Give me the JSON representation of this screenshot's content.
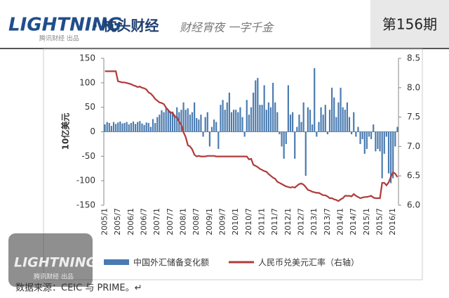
{
  "header": {
    "logo": "LIGHTNING",
    "logo_sub": "腾讯财经 出品",
    "brand": "· 枕头财经",
    "slogan": "财经宵夜 一字千金",
    "issue": "第156期"
  },
  "watermark": {
    "logo": "LIGHTNING",
    "logo_sub": "腾讯财经 出品"
  },
  "source": "数据来源：CEIC 与 PRIME。↵",
  "chart_data": {
    "type": "combo",
    "y_label": "10亿美元",
    "categories": [
      "2005/1",
      null,
      null,
      null,
      null,
      null,
      "2005/7",
      null,
      null,
      null,
      null,
      null,
      "2006/1",
      null,
      null,
      null,
      null,
      null,
      "2006/7",
      null,
      null,
      null,
      null,
      null,
      "2007/1",
      null,
      null,
      null,
      null,
      null,
      "2007/7",
      null,
      null,
      null,
      null,
      null,
      "2008/1",
      null,
      null,
      null,
      null,
      null,
      "2008/7",
      null,
      null,
      null,
      null,
      null,
      "2009/1",
      null,
      null,
      null,
      null,
      null,
      "2009/7",
      null,
      null,
      null,
      null,
      null,
      "2010/1",
      null,
      null,
      null,
      null,
      null,
      "2010/7",
      null,
      null,
      null,
      null,
      null,
      "2011/1",
      null,
      null,
      null,
      null,
      null,
      "2011/7",
      null,
      null,
      null,
      null,
      null,
      "2012/1",
      null,
      null,
      null,
      null,
      null,
      "2012/7",
      null,
      null,
      null,
      null,
      null,
      "2013/1",
      null,
      null,
      null,
      null,
      null,
      "2013/7",
      null,
      null,
      null,
      null,
      null,
      "2014/1",
      null,
      null,
      null,
      null,
      null,
      "2014/7",
      null,
      null,
      null,
      null,
      null,
      "2015/1",
      null,
      null,
      null,
      null,
      null,
      "2015/7",
      null,
      null,
      null,
      null,
      null,
      "2016/1",
      null,
      null
    ],
    "series": [
      {
        "name": "中国外汇储备变化额",
        "type": "bar",
        "color": "#4a7bb0",
        "values": [
          15,
          20,
          18,
          12,
          20,
          16,
          19,
          21,
          17,
          18,
          20,
          15,
          18,
          21,
          16,
          20,
          22,
          17,
          14,
          19,
          18,
          10,
          26,
          18,
          30,
          35,
          44,
          40,
          50,
          45,
          42,
          38,
          35,
          50,
          40,
          45,
          60,
          45,
          48,
          35,
          40,
          60,
          28,
          25,
          35,
          -10,
          30,
          40,
          -30,
          10,
          25,
          20,
          -35,
          55,
          65,
          45,
          60,
          80,
          40,
          45,
          45,
          40,
          50,
          30,
          -10,
          65,
          35,
          50,
          80,
          105,
          110,
          55,
          55,
          95,
          45,
          60,
          50,
          100,
          60,
          40,
          -5,
          -30,
          -55,
          -25,
          95,
          35,
          40,
          -55,
          10,
          35,
          20,
          60,
          -90,
          50,
          45,
          15,
          130,
          -10,
          20,
          50,
          35,
          55,
          -5,
          45,
          90,
          70,
          30,
          60,
          90,
          50,
          45,
          60,
          30,
          -5,
          40,
          -10,
          10,
          -25,
          -15,
          -45,
          -35,
          -10,
          -15,
          15,
          -40,
          -35,
          -40,
          -95,
          -45,
          -10,
          -85,
          -105,
          -95,
          -30,
          10
        ]
      },
      {
        "name": "人民币兑美元汇率（右轴）",
        "type": "line",
        "axis": "y2",
        "color": "#b03a3a",
        "values": [
          8.28,
          8.28,
          8.28,
          8.28,
          8.28,
          8.28,
          8.11,
          8.1,
          8.09,
          8.09,
          8.08,
          8.07,
          8.06,
          8.04,
          8.03,
          8.01,
          8.02,
          8.0,
          7.99,
          7.97,
          7.92,
          7.9,
          7.86,
          7.81,
          7.78,
          7.75,
          7.74,
          7.72,
          7.66,
          7.62,
          7.57,
          7.58,
          7.5,
          7.5,
          7.42,
          7.37,
          7.24,
          7.16,
          7.02,
          7.0,
          6.95,
          6.86,
          6.83,
          6.84,
          6.83,
          6.83,
          6.83,
          6.84,
          6.84,
          6.84,
          6.84,
          6.83,
          6.83,
          6.83,
          6.83,
          6.83,
          6.83,
          6.83,
          6.83,
          6.83,
          6.83,
          6.83,
          6.83,
          6.83,
          6.83,
          6.83,
          6.78,
          6.79,
          6.69,
          6.67,
          6.65,
          6.62,
          6.6,
          6.58,
          6.57,
          6.53,
          6.5,
          6.47,
          6.45,
          6.4,
          6.38,
          6.36,
          6.34,
          6.32,
          6.31,
          6.3,
          6.31,
          6.3,
          6.33,
          6.36,
          6.37,
          6.35,
          6.31,
          6.26,
          6.25,
          6.23,
          6.22,
          6.21,
          6.21,
          6.19,
          6.17,
          6.17,
          6.15,
          6.12,
          6.12,
          6.1,
          6.09,
          6.07,
          6.1,
          6.12,
          6.16,
          6.16,
          6.16,
          6.15,
          6.19,
          6.16,
          6.14,
          6.12,
          6.13,
          6.14,
          6.14,
          6.15,
          6.16,
          6.13,
          6.12,
          6.12,
          6.12,
          6.38,
          6.38,
          6.34,
          6.39,
          6.48,
          6.56,
          6.54,
          6.48
        ]
      }
    ],
    "ylim": [
      -150,
      150
    ],
    "yticks": [
      -150,
      -100,
      -50,
      0,
      50,
      100,
      150
    ],
    "y2lim": [
      6,
      8.5
    ],
    "y2ticks": [
      {
        "value": 6,
        "label": "6.0"
      },
      {
        "value": 6.5,
        "label": "6.5"
      },
      {
        "value": 7,
        "label": "7.0"
      },
      {
        "value": 7.5,
        "label": "7.5"
      },
      {
        "value": 8,
        "label": "8.0"
      },
      {
        "value": 8.5,
        "label": "8.5"
      }
    ]
  }
}
